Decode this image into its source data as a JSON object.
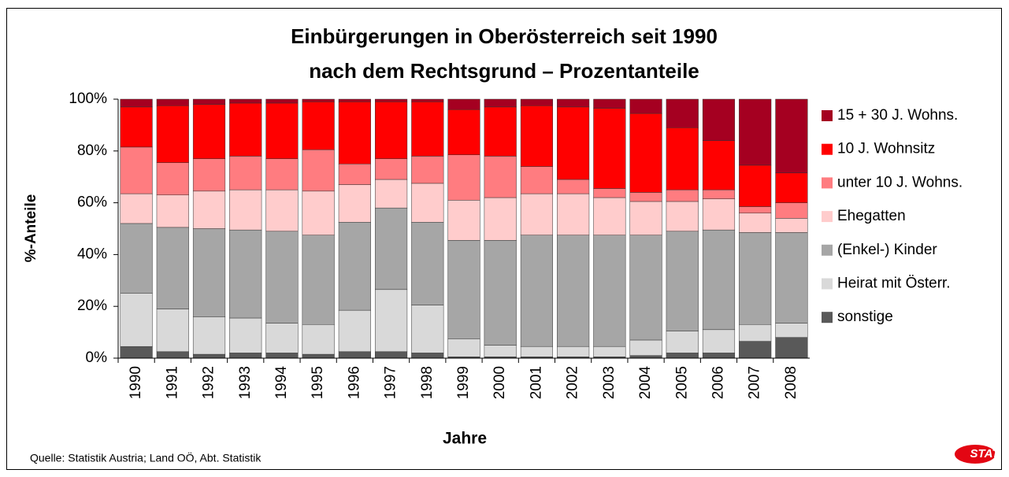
{
  "chart_data": {
    "type": "stacked_bar",
    "title": "Einbürgerungen in Oberösterreich seit 1990",
    "subtitle": "nach dem Rechtsgrund – Prozentanteile",
    "y_label": "%-Anteile",
    "x_label": "Jahre",
    "source": "Quelle: Statistik Austria; Land OÖ, Abt. Statistik",
    "logo": "STAT",
    "categories": [
      "1990",
      "1991",
      "1992",
      "1993",
      "1994",
      "1995",
      "1996",
      "1997",
      "1998",
      "1999",
      "2000",
      "2001",
      "2002",
      "2003",
      "2004",
      "2005",
      "2006",
      "2007",
      "2008"
    ],
    "series": [
      {
        "name": "sonstige",
        "color": "#595959",
        "values": [
          4.5,
          2.5,
          1.5,
          2,
          2,
          1.5,
          2.5,
          2.5,
          2,
          0.5,
          0.5,
          0.5,
          0.5,
          0.5,
          1,
          2,
          2,
          6.5,
          8
        ]
      },
      {
        "name": "Heirat mit Österr.",
        "color": "#d9d9d9",
        "values": [
          20.5,
          16.5,
          14.5,
          13.5,
          11.5,
          11.5,
          16,
          24,
          18.5,
          7,
          4.5,
          4,
          4,
          4,
          6,
          8.5,
          9,
          6.5,
          5.5
        ]
      },
      {
        "name": "(Enkel-) Kinder",
        "color": "#a6a6a6",
        "values": [
          27,
          31.5,
          34,
          34,
          35.5,
          34.5,
          34,
          31.5,
          32,
          38,
          40.5,
          43,
          43,
          43,
          40.5,
          38.5,
          38.5,
          35.5,
          35
        ]
      },
      {
        "name": "Ehegatten",
        "color": "#ffcccc",
        "values": [
          11.5,
          12.5,
          14.5,
          15.5,
          16,
          17,
          14.5,
          11,
          15,
          15.5,
          16.5,
          16,
          16,
          14.5,
          13,
          11.5,
          12,
          7.5,
          5.5
        ]
      },
      {
        "name": "unter 10 J. Wohns.",
        "color": "#ff7c80",
        "values": [
          18,
          12.5,
          12.5,
          13,
          12,
          16,
          8,
          8,
          10.5,
          17.5,
          16,
          10.5,
          5.5,
          3.5,
          3.5,
          4.5,
          3.5,
          2.5,
          6
        ]
      },
      {
        "name": "10 J. Wohnsitz",
        "color": "#ff0000",
        "values": [
          15.5,
          22,
          21,
          20.5,
          21.5,
          18.5,
          24,
          22,
          21,
          17.5,
          19,
          23.5,
          28,
          31,
          30.5,
          24,
          19,
          16,
          11.5
        ]
      },
      {
        "name": "15 + 30 J. Wohns.",
        "color": "#a50021",
        "values": [
          3,
          2.5,
          2,
          1.5,
          1.5,
          1,
          1,
          1,
          1,
          4,
          3,
          2.5,
          3,
          3.5,
          5.5,
          11,
          16,
          25.5,
          28.5
        ]
      }
    ],
    "ylim": [
      0,
      100
    ],
    "yticks": [
      {
        "value": 0,
        "label": "0%"
      },
      {
        "value": 20,
        "label": "20%"
      },
      {
        "value": 40,
        "label": "40%"
      },
      {
        "value": 60,
        "label": "60%"
      },
      {
        "value": 80,
        "label": "80%"
      },
      {
        "value": 100,
        "label": "100%"
      }
    ],
    "legend": "right"
  }
}
